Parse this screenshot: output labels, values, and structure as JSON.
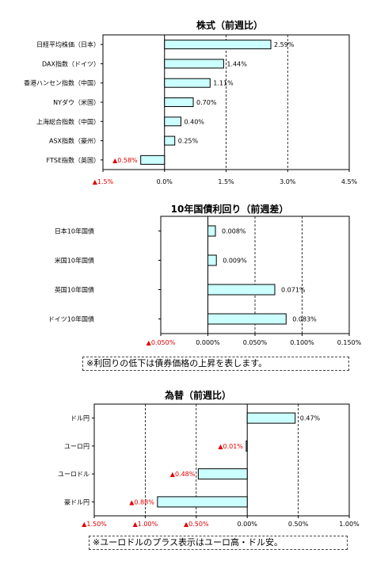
{
  "chart_data": [
    {
      "type": "bar",
      "orientation": "horizontal",
      "title": "株式（前週比）",
      "categories": [
        "日経平均株価（日本）",
        "DAX指数（ドイツ）",
        "香港ハンセン指数（中国）",
        "NYダウ（米国）",
        "上海総合指数（中国）",
        "ASX指数（豪州）",
        "FTSE指数（英国）"
      ],
      "values": [
        2.59,
        1.44,
        1.11,
        0.7,
        0.4,
        0.25,
        -0.58
      ],
      "value_labels": [
        "2.59%",
        "1.44%",
        "1.11%",
        "0.70%",
        "0.40%",
        "0.25%",
        "▲0.58%"
      ],
      "xlim": [
        -1.5,
        4.5
      ],
      "ticks": [
        -1.5,
        0,
        1.5,
        3.0,
        4.5
      ],
      "tick_labels": [
        "▲1.5%",
        "0.0%",
        "1.5%",
        "3.0%",
        "4.5%"
      ],
      "grid": "dashed vertical",
      "bar_color": "#ccffff"
    },
    {
      "type": "bar",
      "orientation": "horizontal",
      "title": "10年国債利回り（前週差）",
      "categories": [
        "日本10年国債",
        "米国10年国債",
        "英国10年国債",
        "ドイツ10年国債"
      ],
      "values": [
        0.008,
        0.009,
        0.071,
        0.083
      ],
      "value_labels": [
        "0.008%",
        "0.009%",
        "0.071%",
        "0.083%"
      ],
      "xlim": [
        -0.05,
        0.15
      ],
      "ticks": [
        -0.05,
        0,
        0.05,
        0.1,
        0.15
      ],
      "tick_labels": [
        "▲0.050%",
        "0.000%",
        "0.050%",
        "0.100%",
        "0.150%"
      ],
      "grid": "dashed vertical",
      "bar_color": "#ccffff",
      "note": "※利回りの低下は債券価格の上昇を表します。"
    },
    {
      "type": "bar",
      "orientation": "horizontal",
      "title": "為替（前週比）",
      "categories": [
        "ドル円",
        "ユーロ円",
        "ユーロドル",
        "豪ドル円"
      ],
      "values": [
        0.47,
        -0.01,
        -0.48,
        -0.88
      ],
      "value_labels": [
        "0.47%",
        "▲0.01%",
        "▲0.48%",
        "▲0.88%"
      ],
      "xlim": [
        -1.5,
        1.0
      ],
      "ticks": [
        -1.5,
        -1.0,
        -0.5,
        0,
        0.5,
        1.0
      ],
      "tick_labels": [
        "▲1.50%",
        "▲1.00%",
        "▲0.50%",
        "0.00%",
        "0.50%",
        "1.00%"
      ],
      "grid": "dashed vertical",
      "bar_color": "#ccffff",
      "note": "※ユーロドルのプラス表示はユーロ高・ドル安。"
    }
  ]
}
